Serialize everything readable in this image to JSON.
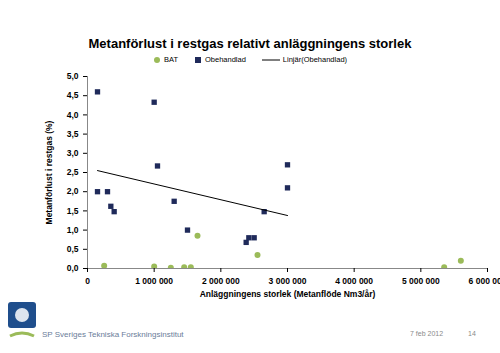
{
  "chart_data": {
    "type": "scatter",
    "title": "Metanförlust i restgas relativt anläggningens storlek",
    "x_label": "Anläggningens storlek (Metanflöde Nm3/år)",
    "y_label": "Metanförlust i restgas (%)",
    "xlim": [
      0,
      6000000
    ],
    "xticks": [
      0,
      {
        "value": 1000000,
        "label": "1 000 000"
      },
      {
        "value": 2000000,
        "label": "2 000 000"
      },
      {
        "value": 3000000,
        "label": "3 000 000"
      },
      {
        "value": 4000000,
        "label": "4 000 000"
      },
      {
        "value": 5000000,
        "label": "5 000 000"
      },
      {
        "value": 6000000,
        "label": "6 000 000"
      }
    ],
    "ylim": [
      0,
      5
    ],
    "yticks": [
      {
        "value": 0,
        "label": "0,0"
      },
      {
        "value": 0.5,
        "label": "0,5"
      },
      {
        "value": 1,
        "label": "1,0"
      },
      {
        "value": 1.5,
        "label": "1,5"
      },
      {
        "value": 2,
        "label": "2,0"
      },
      {
        "value": 2.5,
        "label": "2,5"
      },
      {
        "value": 3,
        "label": "3,0"
      },
      {
        "value": 3.5,
        "label": "3,5"
      },
      {
        "value": 4,
        "label": "4,0"
      },
      {
        "value": 4.5,
        "label": "4,5"
      },
      {
        "value": 5,
        "label": "5,0"
      }
    ],
    "grid": false,
    "legend": "top",
    "series": [
      {
        "name": "BAT",
        "type": "scatter",
        "marker": "circle",
        "color": "#9bbb59",
        "x": [
          250000,
          1000000,
          1250000,
          1450000,
          1550000,
          1650000,
          2550000,
          5350000,
          5600000
        ],
        "values": [
          0.07,
          0.05,
          0.02,
          0.03,
          0.03,
          0.85,
          0.35,
          0.03,
          0.2
        ]
      },
      {
        "name": "Obehandlad",
        "type": "scatter",
        "marker": "square",
        "color": "#1f2a5a",
        "x": [
          150000,
          150000,
          300000,
          350000,
          400000,
          1000000,
          1050000,
          1300000,
          1500000,
          2380000,
          2420000,
          2500000,
          2650000,
          3000000,
          3000000
        ],
        "values": [
          4.6,
          2.0,
          2.0,
          1.62,
          1.48,
          4.33,
          2.67,
          1.75,
          1.0,
          0.68,
          0.8,
          0.8,
          1.48,
          2.1,
          2.7
        ]
      },
      {
        "name": "Linjär(Obehandlad)",
        "type": "line",
        "color": "#000000",
        "x": [
          150000,
          3000000
        ],
        "values": [
          2.55,
          1.38
        ]
      }
    ],
    "annotations": [
      "SP Sveriges Tekniska Forskningsinstitut",
      "7 feb 2012",
      "14"
    ]
  }
}
